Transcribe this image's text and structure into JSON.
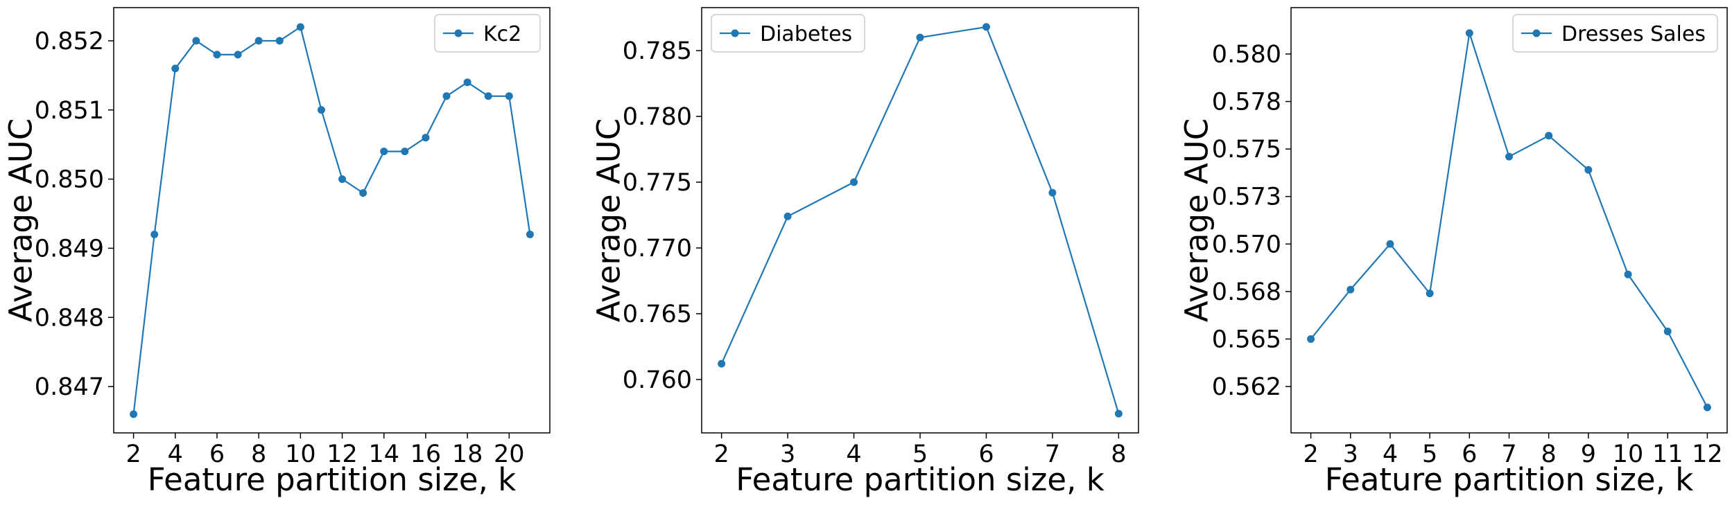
{
  "figure": {
    "background": "#ffffff",
    "series_color": "#1f77b4"
  },
  "chart_data": [
    {
      "type": "line",
      "xlabel": "Feature partition size, k",
      "ylabel": "Average AUC",
      "legend": "Kc2",
      "legend_position": "top-right",
      "grid": false,
      "marker": "circle",
      "x": [
        2,
        3,
        4,
        5,
        6,
        7,
        8,
        9,
        10,
        11,
        12,
        13,
        14,
        15,
        16,
        17,
        18,
        19,
        20,
        21
      ],
      "series": [
        {
          "name": "Kc2",
          "values": [
            0.8466,
            0.8492,
            0.8516,
            0.852,
            0.8518,
            0.8518,
            0.852,
            0.852,
            0.8522,
            0.851,
            0.85,
            0.8498,
            0.8504,
            0.8504,
            0.8506,
            0.8512,
            0.8514,
            0.8512,
            0.8512,
            0.8492
          ]
        }
      ],
      "xlim": [
        1.05,
        21.95
      ],
      "ylim": [
        0.84633,
        0.85248
      ],
      "xticks": [
        2,
        4,
        6,
        8,
        10,
        12,
        14,
        16,
        18,
        20
      ],
      "xtick_labels": [
        "2",
        "4",
        "6",
        "8",
        "10",
        "12",
        "14",
        "16",
        "18",
        "20"
      ],
      "yticks": [
        0.847,
        0.848,
        0.849,
        0.85,
        0.851,
        0.852
      ],
      "ytick_labels": [
        "0.847",
        "0.848",
        "0.849",
        "0.850",
        "0.851",
        "0.852"
      ]
    },
    {
      "type": "line",
      "xlabel": "Feature partition size, k",
      "ylabel": "Average AUC",
      "legend": "Diabetes",
      "legend_position": "top-left",
      "grid": false,
      "marker": "circle",
      "x": [
        2,
        3,
        4,
        5,
        6,
        7,
        8
      ],
      "series": [
        {
          "name": "Diabetes",
          "values": [
            0.7612,
            0.7724,
            0.775,
            0.786,
            0.7868,
            0.7742,
            0.7574
          ]
        }
      ],
      "xlim": [
        1.7,
        8.3
      ],
      "ylim": [
        0.75594,
        0.78827
      ],
      "xticks": [
        2,
        3,
        4,
        5,
        6,
        7,
        8
      ],
      "xtick_labels": [
        "2",
        "3",
        "4",
        "5",
        "6",
        "7",
        "8"
      ],
      "yticks": [
        0.76,
        0.765,
        0.77,
        0.775,
        0.78,
        0.785
      ],
      "ytick_labels": [
        "0.760",
        "0.765",
        "0.770",
        "0.775",
        "0.780",
        "0.785"
      ]
    },
    {
      "type": "line",
      "xlabel": "Feature partition size, k",
      "ylabel": "Average AUC",
      "legend": "Dresses Sales",
      "legend_position": "top-right",
      "grid": false,
      "marker": "circle",
      "x": [
        2,
        3,
        4,
        5,
        6,
        7,
        8,
        9,
        10,
        11,
        12
      ],
      "series": [
        {
          "name": "Dresses Sales",
          "values": [
            0.565,
            0.5676,
            0.57,
            0.5674,
            0.5811,
            0.5746,
            0.5757,
            0.5739,
            0.5684,
            0.5654,
            0.5614
          ]
        }
      ],
      "xlim": [
        1.5,
        12.5
      ],
      "ylim": [
        0.56006,
        0.58244
      ],
      "xticks": [
        2,
        3,
        4,
        5,
        6,
        7,
        8,
        9,
        10,
        11,
        12
      ],
      "xtick_labels": [
        "2",
        "3",
        "4",
        "5",
        "6",
        "7",
        "8",
        "9",
        "10",
        "11",
        "12"
      ],
      "yticks": [
        0.5625,
        0.565,
        0.5675,
        0.57,
        0.5725,
        0.575,
        0.5775,
        0.58
      ],
      "ytick_labels": [
        "0.562",
        "0.565",
        "0.568",
        "0.570",
        "0.573",
        "0.575",
        "0.578",
        "0.580"
      ]
    }
  ]
}
